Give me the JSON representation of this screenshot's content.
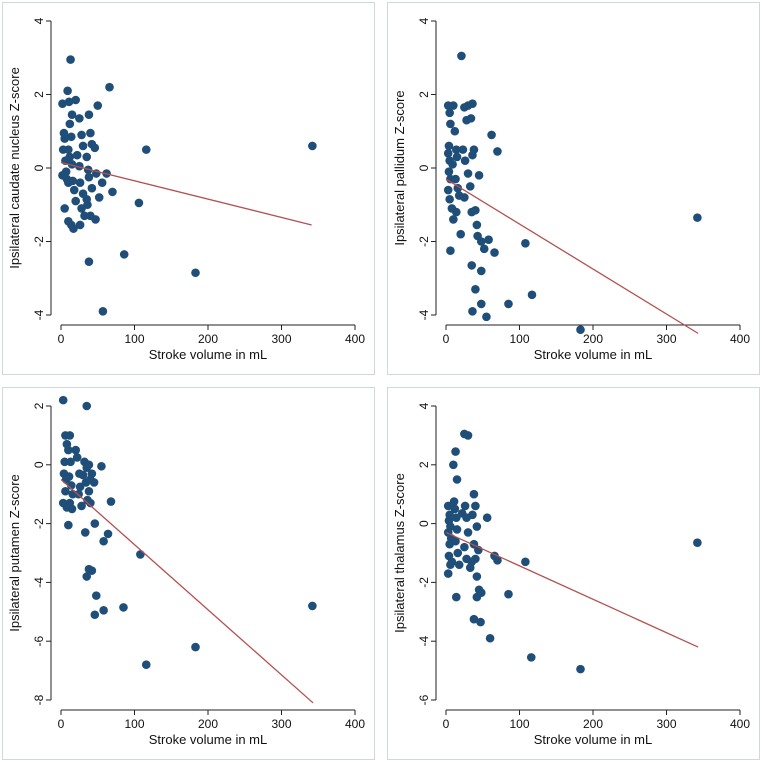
{
  "colors": {
    "marker": "#1f4e79",
    "fit_line": "#b5504f",
    "axis": "#222222",
    "panel_border": "#cfd8dc"
  },
  "chart_data": [
    {
      "type": "scatter",
      "title": "",
      "xlabel": "Stroke volume in mL",
      "ylabel": "Ipsilateral caudate nucleus Z-score",
      "xlim": [
        0,
        400
      ],
      "ylim": [
        -4,
        4
      ],
      "x_ticks": [
        0,
        100,
        200,
        300,
        400
      ],
      "y_ticks": [
        -4,
        -2,
        0,
        2,
        4
      ],
      "fit_line": {
        "x": [
          0,
          341
        ],
        "y": [
          0.15,
          -1.55
        ]
      },
      "points": [
        [
          2,
          1.75
        ],
        [
          4,
          0.95
        ],
        [
          5,
          0.8
        ],
        [
          3,
          0.5
        ],
        [
          6,
          0.2
        ],
        [
          7,
          -0.1
        ],
        [
          2,
          -0.2
        ],
        [
          8,
          -0.3
        ],
        [
          10,
          -0.4
        ],
        [
          5,
          -1.1
        ],
        [
          9,
          2.1
        ],
        [
          13,
          2.95
        ],
        [
          11,
          1.8
        ],
        [
          15,
          1.45
        ],
        [
          12,
          1.2
        ],
        [
          14,
          0.85
        ],
        [
          10,
          0.5
        ],
        [
          12,
          0.3
        ],
        [
          15,
          0.1
        ],
        [
          16,
          -0.35
        ],
        [
          18,
          -0.6
        ],
        [
          20,
          -0.9
        ],
        [
          10,
          -1.45
        ],
        [
          14,
          -1.55
        ],
        [
          17,
          -1.65
        ],
        [
          20,
          1.85
        ],
        [
          25,
          1.35
        ],
        [
          28,
          0.9
        ],
        [
          30,
          0.6
        ],
        [
          22,
          0.35
        ],
        [
          25,
          0.05
        ],
        [
          26,
          -0.4
        ],
        [
          30,
          -0.7
        ],
        [
          35,
          -0.85
        ],
        [
          28,
          -1.1
        ],
        [
          32,
          -1.3
        ],
        [
          26,
          -1.55
        ],
        [
          38,
          1.45
        ],
        [
          40,
          0.95
        ],
        [
          42,
          0.65
        ],
        [
          35,
          0.3
        ],
        [
          37,
          -0.05
        ],
        [
          38,
          -0.25
        ],
        [
          42,
          -0.55
        ],
        [
          36,
          -1.0
        ],
        [
          40,
          -1.3
        ],
        [
          47,
          -1.4
        ],
        [
          50,
          1.7
        ],
        [
          46,
          0.55
        ],
        [
          48,
          -0.15
        ],
        [
          52,
          -0.8
        ],
        [
          56,
          -0.4
        ],
        [
          62,
          -0.15
        ],
        [
          66,
          2.2
        ],
        [
          70,
          -0.65
        ],
        [
          38,
          -2.55
        ],
        [
          86,
          -2.35
        ],
        [
          57,
          -3.9
        ],
        [
          106,
          -0.95
        ],
        [
          116,
          0.5
        ],
        [
          183,
          -2.85
        ],
        [
          342,
          0.6
        ]
      ]
    },
    {
      "type": "scatter",
      "title": "",
      "xlabel": "Stroke volume in mL",
      "ylabel": "Ipsilateral pallidum Z-score",
      "xlim": [
        0,
        400
      ],
      "ylim": [
        -4,
        4
      ],
      "x_ticks": [
        0,
        100,
        200,
        300,
        400
      ],
      "y_ticks": [
        -4,
        -2,
        0,
        2,
        4
      ],
      "fit_line": {
        "x": [
          0,
          343
        ],
        "y": [
          -0.3,
          -4.5
        ]
      },
      "points": [
        [
          3,
          1.7
        ],
        [
          5,
          1.5
        ],
        [
          6,
          1.2
        ],
        [
          4,
          0.6
        ],
        [
          3,
          0.4
        ],
        [
          5,
          0.2
        ],
        [
          4,
          -0.1
        ],
        [
          6,
          -0.3
        ],
        [
          3,
          -0.6
        ],
        [
          5,
          -0.85
        ],
        [
          8,
          -1.1
        ],
        [
          10,
          1.7
        ],
        [
          12,
          1.0
        ],
        [
          14,
          0.5
        ],
        [
          15,
          0.3
        ],
        [
          9,
          0.1
        ],
        [
          13,
          -0.3
        ],
        [
          16,
          -0.55
        ],
        [
          18,
          -0.75
        ],
        [
          14,
          -1.2
        ],
        [
          10,
          -1.4
        ],
        [
          21,
          3.05
        ],
        [
          25,
          1.65
        ],
        [
          28,
          1.3
        ],
        [
          30,
          1.7
        ],
        [
          23,
          0.5
        ],
        [
          26,
          0.2
        ],
        [
          30,
          -0.15
        ],
        [
          33,
          -0.5
        ],
        [
          25,
          -0.8
        ],
        [
          36,
          1.75
        ],
        [
          34,
          1.35
        ],
        [
          38,
          0.5
        ],
        [
          36,
          0.35
        ],
        [
          35,
          -1.2
        ],
        [
          40,
          -1.15
        ],
        [
          42,
          -1.55
        ],
        [
          43,
          -1.85
        ],
        [
          6,
          -2.25
        ],
        [
          20,
          -1.8
        ],
        [
          45,
          -0.2
        ],
        [
          48,
          -2.0
        ],
        [
          52,
          -2.2
        ],
        [
          58,
          -1.95
        ],
        [
          62,
          0.9
        ],
        [
          70,
          0.45
        ],
        [
          66,
          -2.3
        ],
        [
          35,
          -2.65
        ],
        [
          48,
          -2.8
        ],
        [
          40,
          -3.3
        ],
        [
          36,
          -3.9
        ],
        [
          48,
          -3.7
        ],
        [
          55,
          -4.05
        ],
        [
          85,
          -3.7
        ],
        [
          108,
          -2.05
        ],
        [
          117,
          -3.45
        ],
        [
          183,
          -4.4
        ],
        [
          342,
          -1.35
        ]
      ]
    },
    {
      "type": "scatter",
      "title": "",
      "xlabel": "Stroke volume in mL",
      "ylabel": "Ipsilateral putamen Z-score",
      "xlim": [
        0,
        400
      ],
      "ylim": [
        -8,
        2
      ],
      "x_ticks": [
        0,
        100,
        200,
        300,
        400
      ],
      "y_ticks": [
        -8,
        -6,
        -4,
        -2,
        0,
        2
      ],
      "fit_line": {
        "x": [
          0,
          343
        ],
        "y": [
          -0.5,
          -8.1
        ]
      },
      "points": [
        [
          3,
          2.2
        ],
        [
          6,
          1.0
        ],
        [
          8,
          0.7
        ],
        [
          5,
          0.1
        ],
        [
          4,
          -0.3
        ],
        [
          7,
          -0.5
        ],
        [
          6,
          -0.9
        ],
        [
          3,
          -1.3
        ],
        [
          8,
          -1.45
        ],
        [
          10,
          -2.05
        ],
        [
          12,
          1.0
        ],
        [
          10,
          0.5
        ],
        [
          13,
          0.1
        ],
        [
          11,
          -0.4
        ],
        [
          14,
          -0.7
        ],
        [
          16,
          -1.0
        ],
        [
          12,
          -1.3
        ],
        [
          15,
          -1.5
        ],
        [
          20,
          0.5
        ],
        [
          22,
          0.25
        ],
        [
          25,
          -0.3
        ],
        [
          26,
          -0.75
        ],
        [
          24,
          -1.0
        ],
        [
          28,
          -1.4
        ],
        [
          32,
          0.1
        ],
        [
          35,
          -0.1
        ],
        [
          30,
          -0.35
        ],
        [
          34,
          -0.6
        ],
        [
          38,
          -0.9
        ],
        [
          36,
          -1.2
        ],
        [
          35,
          2.0
        ],
        [
          38,
          0.0
        ],
        [
          42,
          -0.3
        ],
        [
          40,
          -0.5
        ],
        [
          45,
          -0.6
        ],
        [
          40,
          -1.3
        ],
        [
          33,
          -2.3
        ],
        [
          46,
          -2.0
        ],
        [
          55,
          -0.05
        ],
        [
          58,
          -2.6
        ],
        [
          68,
          -1.25
        ],
        [
          64,
          -2.35
        ],
        [
          38,
          -3.55
        ],
        [
          42,
          -3.6
        ],
        [
          35,
          -3.8
        ],
        [
          48,
          -4.45
        ],
        [
          46,
          -5.1
        ],
        [
          58,
          -4.95
        ],
        [
          85,
          -4.85
        ],
        [
          108,
          -3.05
        ],
        [
          116,
          -6.8
        ],
        [
          183,
          -6.2
        ],
        [
          342,
          -4.8
        ]
      ]
    },
    {
      "type": "scatter",
      "title": "",
      "xlabel": "Stroke volume in mL",
      "ylabel": "Ipsilateral thalamus Z-score",
      "xlim": [
        0,
        400
      ],
      "ylim": [
        -6,
        4
      ],
      "x_ticks": [
        0,
        100,
        200,
        300,
        400
      ],
      "y_ticks": [
        -6,
        -4,
        -2,
        0,
        2,
        4
      ],
      "fit_line": {
        "x": [
          0,
          343
        ],
        "y": [
          -0.3,
          -4.2
        ]
      },
      "points": [
        [
          3,
          0.6
        ],
        [
          5,
          0.3
        ],
        [
          4,
          0.1
        ],
        [
          6,
          -0.1
        ],
        [
          3,
          -0.3
        ],
        [
          7,
          -0.5
        ],
        [
          5,
          -0.7
        ],
        [
          4,
          -1.1
        ],
        [
          6,
          -1.4
        ],
        [
          3,
          -1.7
        ],
        [
          8,
          -1.3
        ],
        [
          10,
          2.0
        ],
        [
          13,
          2.45
        ],
        [
          15,
          1.5
        ],
        [
          11,
          0.75
        ],
        [
          12,
          0.5
        ],
        [
          14,
          0.2
        ],
        [
          15,
          -0.2
        ],
        [
          13,
          -0.6
        ],
        [
          16,
          -1.0
        ],
        [
          18,
          -1.4
        ],
        [
          14,
          -2.5
        ],
        [
          22,
          0.35
        ],
        [
          25,
          3.05
        ],
        [
          30,
          3.0
        ],
        [
          26,
          0.6
        ],
        [
          28,
          0.2
        ],
        [
          30,
          -0.3
        ],
        [
          25,
          -0.8
        ],
        [
          28,
          -1.2
        ],
        [
          33,
          -1.5
        ],
        [
          35,
          -1.3
        ],
        [
          38,
          1.0
        ],
        [
          40,
          0.6
        ],
        [
          36,
          0.3
        ],
        [
          42,
          -0.1
        ],
        [
          38,
          -0.7
        ],
        [
          44,
          -0.9
        ],
        [
          40,
          -1.2
        ],
        [
          42,
          -1.8
        ],
        [
          45,
          -2.25
        ],
        [
          42,
          -2.5
        ],
        [
          48,
          -2.35
        ],
        [
          38,
          -3.25
        ],
        [
          47,
          -3.35
        ],
        [
          56,
          0.2
        ],
        [
          60,
          -3.9
        ],
        [
          66,
          -1.1
        ],
        [
          70,
          -1.25
        ],
        [
          85,
          -2.4
        ],
        [
          108,
          -1.3
        ],
        [
          116,
          -4.55
        ],
        [
          183,
          -4.95
        ],
        [
          342,
          -0.65
        ]
      ]
    }
  ]
}
